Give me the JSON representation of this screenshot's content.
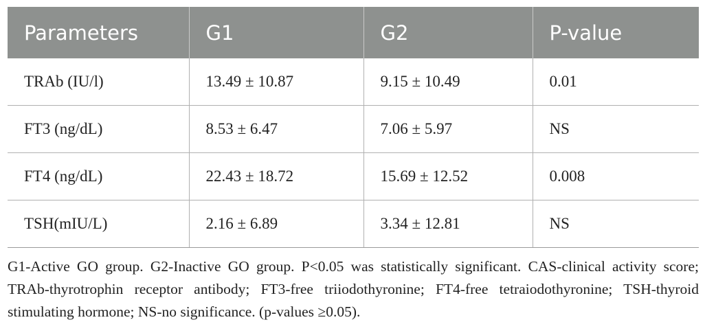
{
  "table": {
    "headers": [
      "Parameters",
      "G1",
      "G2",
      "P-value"
    ],
    "rows": [
      [
        "TRAb (IU/l)",
        "13.49 ± 10.87",
        "9.15 ± 10.49",
        "0.01"
      ],
      [
        "FT3 (ng/dL)",
        "8.53 ± 6.47",
        "7.06 ± 5.97",
        "NS"
      ],
      [
        "FT4 (ng/dL)",
        "22.43 ± 18.72",
        "15.69 ± 12.52",
        "0.008"
      ],
      [
        "TSH(mIU/L)",
        "2.16 ± 6.89",
        "3.34 ± 12.81",
        "NS"
      ]
    ]
  },
  "footnote": "G1-Active GO group. G2-Inactive GO group. P<0.05 was statistically significant. CAS-clinical activity score; TRAb-thyrotrophin receptor antibody; FT3-free triiodothyronine; FT4-free tetraiodothyronine; TSH-thyroid stimulating hormone; NS-no significance. (p-values ≥0.05)."
}
